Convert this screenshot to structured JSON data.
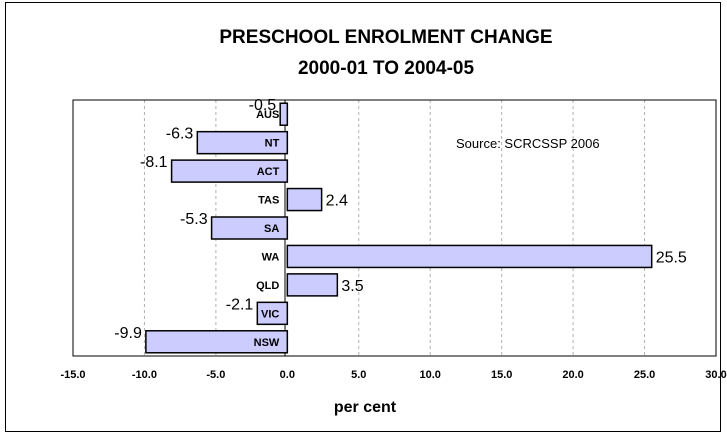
{
  "chart_data": {
    "type": "bar",
    "orientation": "horizontal",
    "title": [
      "PRESCHOOL ENROLMENT CHANGE",
      "2000-01 TO 2004-05"
    ],
    "xlabel": "per cent",
    "ylabel": "",
    "annotation": "Source: SCRCSSP 2006",
    "categories": [
      "AUS",
      "NT",
      "ACT",
      "TAS",
      "SA",
      "WA",
      "QLD",
      "VIC",
      "NSW"
    ],
    "values": [
      -0.5,
      -6.3,
      -8.1,
      2.4,
      -5.3,
      25.5,
      3.5,
      -2.1,
      -9.9
    ],
    "data_labels": [
      "-0.5",
      "-6.3",
      "-8.1",
      "2.4",
      "-5.3",
      "25.5",
      "3.5",
      "-2.1",
      "-9.9"
    ],
    "xlim": [
      -15,
      30
    ],
    "xticks": [
      -15,
      -10,
      -5,
      0,
      5,
      10,
      15,
      20,
      25,
      30
    ],
    "xtick_labels": [
      "-15.0",
      "-10.0",
      "-5.0",
      "0.0",
      "5.0",
      "10.0",
      "15.0",
      "20.0",
      "25.0",
      "30.0"
    ],
    "grid": "vertical dashed",
    "bar_color": "#ccccff",
    "bar_border_color": "#000000"
  }
}
